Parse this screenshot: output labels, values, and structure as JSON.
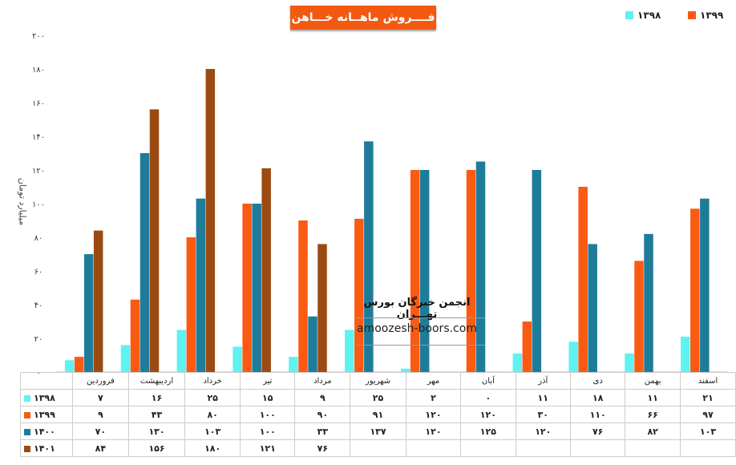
{
  "title": "فــــروش ماهــانه خـــاهن",
  "ylabel": "میلیارد تومان",
  "watermark": {
    "line1": "انجمن خبرگان بورس تهـــران",
    "line2": "amoozesh-boors.com"
  },
  "legend": {
    "a": "۱۳۹۸",
    "b": "۱۳۹۹"
  },
  "chart_data": {
    "type": "bar",
    "categories": [
      "فروردین",
      "اردیبهشت",
      "خرداد",
      "تیر",
      "مرداد",
      "شهریور",
      "مهر",
      "آبان",
      "آذر",
      "دی",
      "بهمن",
      "اسفند"
    ],
    "ylim": [
      0,
      200
    ],
    "yticks": [
      "۰",
      "۲۰",
      "۴۰",
      "۶۰",
      "۸۰",
      "۱۰۰",
      "۱۲۰",
      "۱۴۰",
      "۱۶۰",
      "۱۸۰",
      "۲۰۰"
    ],
    "series": [
      {
        "name": "۱۳۹۸",
        "color": "#5ff2f2",
        "values": [
          7,
          16,
          25,
          15,
          9,
          25,
          2,
          0,
          11,
          18,
          11,
          21
        ],
        "labels": [
          "۷",
          "۱۶",
          "۲۵",
          "۱۵",
          "۹",
          "۲۵",
          "۲",
          "۰",
          "۱۱",
          "۱۸",
          "۱۱",
          "۲۱"
        ]
      },
      {
        "name": "۱۳۹۹",
        "color": "#fa5a12",
        "values": [
          9,
          43,
          80,
          100,
          90,
          91,
          120,
          120,
          30,
          110,
          66,
          97
        ],
        "labels": [
          "۹",
          "۴۳",
          "۸۰",
          "۱۰۰",
          "۹۰",
          "۹۱",
          "۱۲۰",
          "۱۲۰",
          "۳۰",
          "۱۱۰",
          "۶۶",
          "۹۷"
        ]
      },
      {
        "name": "۱۴۰۰",
        "color": "#1f7c99",
        "values": [
          70,
          130,
          103,
          100,
          33,
          137,
          120,
          125,
          120,
          76,
          82,
          103
        ],
        "labels": [
          "۷۰",
          "۱۳۰",
          "۱۰۳",
          "۱۰۰",
          "۳۳",
          "۱۳۷",
          "۱۲۰",
          "۱۲۵",
          "۱۲۰",
          "۷۶",
          "۸۲",
          "۱۰۳"
        ]
      },
      {
        "name": "۱۴۰۱",
        "color": "#9b4a12",
        "values": [
          84,
          156,
          180,
          121,
          76,
          null,
          null,
          null,
          null,
          null,
          null,
          null
        ],
        "labels": [
          "۸۴",
          "۱۵۶",
          "۱۸۰",
          "۱۲۱",
          "۷۶",
          "",
          "",
          "",
          "",
          "",
          "",
          ""
        ]
      }
    ],
    "grid": false,
    "legend_position": "top-right"
  }
}
